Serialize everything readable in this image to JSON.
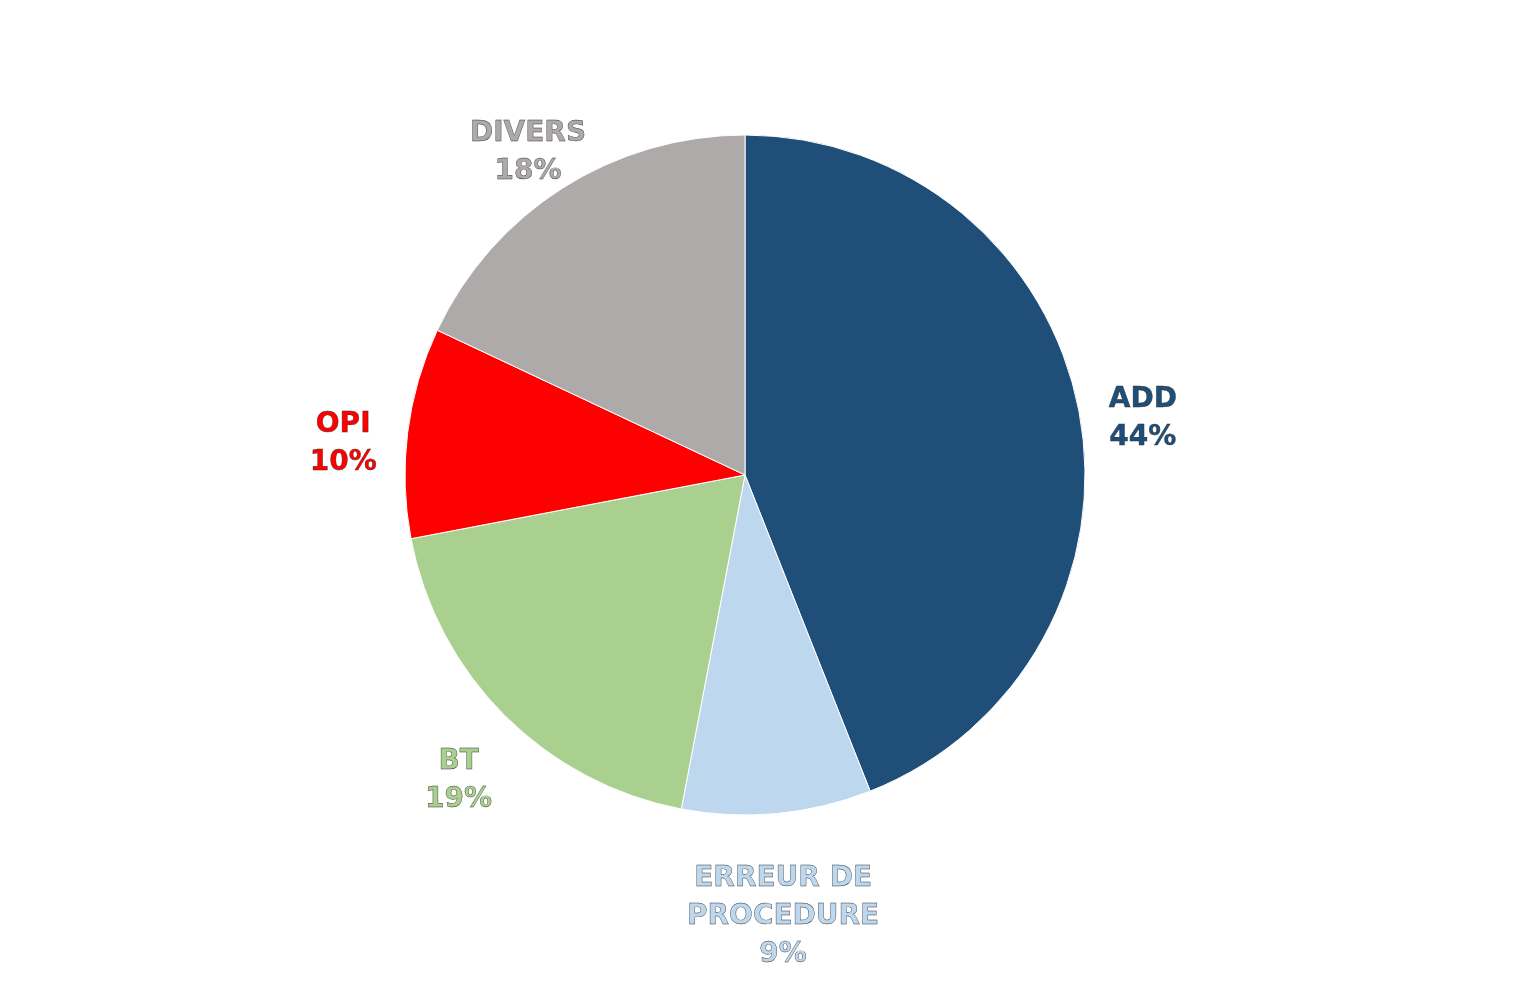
{
  "chart_data": {
    "type": "pie",
    "categories": [
      "ADD",
      "ERREUR DE PROCEDURE",
      "BT",
      "OPI",
      "DIVERS"
    ],
    "values": [
      44,
      9,
      19,
      10,
      18
    ],
    "value_labels": [
      "44%",
      "9%",
      "19%",
      "10%",
      "18%"
    ],
    "colors": [
      "#1f4e79",
      "#bdd7ee",
      "#a9d08e",
      "#ff0000",
      "#aeaaaa"
    ],
    "legend": false
  }
}
